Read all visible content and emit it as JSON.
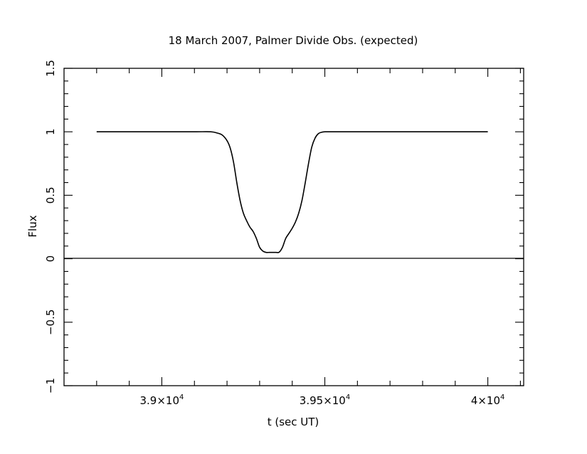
{
  "chart_data": {
    "type": "line",
    "title": "18 March 2007, Palmer Divide Obs. (expected)",
    "xlabel": "t (sec UT)",
    "ylabel": "Flux",
    "xlim": [
      38700,
      40110
    ],
    "ylim": [
      -1,
      1.5
    ],
    "x_ticks": [
      {
        "value": 39000,
        "mantissa": "3.9×10",
        "exp": "4"
      },
      {
        "value": 39500,
        "mantissa": "3.95×10",
        "exp": "4"
      },
      {
        "value": 40000,
        "mantissa": "4×10",
        "exp": "4"
      }
    ],
    "y_ticks": [
      {
        "value": -1,
        "label": "−1"
      },
      {
        "value": -0.5,
        "label": "−0.5"
      },
      {
        "value": 0,
        "label": "0"
      },
      {
        "value": 0.5,
        "label": "0.5"
      },
      {
        "value": 1,
        "label": "1"
      },
      {
        "value": 1.5,
        "label": "1.5"
      }
    ],
    "zero_line": true,
    "series": [
      {
        "x": [
          38800,
          38900,
          39000,
          39100,
          39150,
          39170,
          39185,
          39200,
          39210,
          39220,
          39230,
          39240,
          39250,
          39260,
          39270,
          39280,
          39290,
          39300,
          39310,
          39320,
          39330,
          39340,
          39350,
          39360,
          39370,
          39380,
          39390,
          39400,
          39410,
          39420,
          39430,
          39440,
          39450,
          39460,
          39470,
          39480,
          39490,
          39500,
          39510,
          39530,
          39560,
          39600,
          39700,
          39800,
          39900,
          40000
        ],
        "y": [
          1.0,
          1.0,
          1.0,
          1.0,
          1.0,
          0.99,
          0.975,
          0.93,
          0.87,
          0.76,
          0.6,
          0.46,
          0.36,
          0.3,
          0.25,
          0.215,
          0.16,
          0.09,
          0.06,
          0.05,
          0.05,
          0.05,
          0.05,
          0.052,
          0.09,
          0.16,
          0.2,
          0.24,
          0.29,
          0.36,
          0.46,
          0.6,
          0.75,
          0.88,
          0.95,
          0.985,
          0.996,
          1.0,
          1.0,
          1.0,
          1.0,
          1.0,
          1.0,
          1.0,
          1.0,
          1.0
        ]
      }
    ]
  }
}
